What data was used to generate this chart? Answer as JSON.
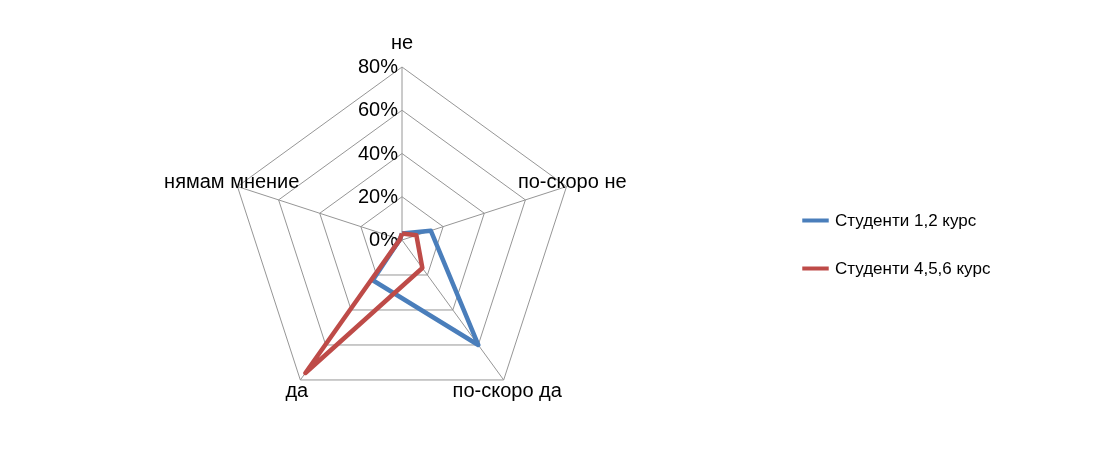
{
  "chart_data": {
    "type": "radar",
    "categories": [
      "не",
      "по-скоро не",
      "по-скоро да",
      "да",
      "нямам мнение"
    ],
    "series": [
      {
        "name": "Студенти 1,2  курс",
        "color": "#4a7ebb",
        "values": [
          3,
          14,
          60,
          23,
          1
        ]
      },
      {
        "name": "Студенти 4,5,6 курс",
        "color": "#be4b48",
        "values": [
          3,
          7,
          16,
          76,
          1
        ]
      }
    ],
    "ylim": [
      0,
      80
    ],
    "yticks": [
      {
        "value": 0,
        "label": "0%"
      },
      {
        "value": 20,
        "label": "20%"
      },
      {
        "value": 40,
        "label": "40%"
      },
      {
        "value": 60,
        "label": "60%"
      },
      {
        "value": 80,
        "label": "80%"
      }
    ],
    "grid": true,
    "legend": "right",
    "marker": "none",
    "line_style": "solid"
  }
}
